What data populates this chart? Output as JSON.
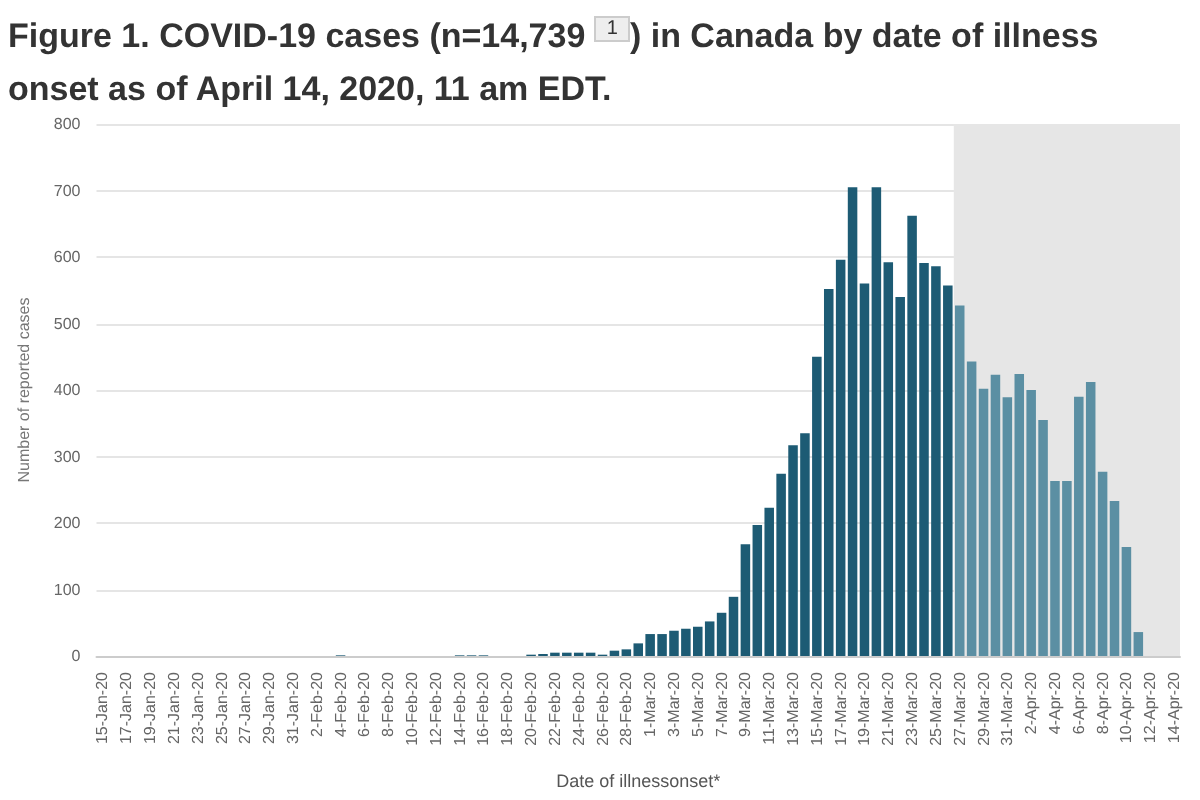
{
  "chart_data": {
    "type": "bar",
    "title": "Figure 1. COVID-19 cases (n=14,739 $^{1}$) in Canada by date of illness onset as of April 14, 2020, 11 am EDT.",
    "xlabel": "Date of illnessonset*",
    "ylabel": "Number of reported cases",
    "categories": [
      "15-Jan-20",
      null,
      "17-Jan-20",
      null,
      "19-Jan-20",
      null,
      "21-Jan-20",
      null,
      "23-Jan-20",
      null,
      "25-Jan-20",
      null,
      "27-Jan-20",
      null,
      "29-Jan-20",
      null,
      "31-Jan-20",
      null,
      "2-Feb-20",
      null,
      "4-Feb-20",
      null,
      "6-Feb-20",
      null,
      "8-Feb-20",
      null,
      "10-Feb-20",
      null,
      "12-Feb-20",
      null,
      "14-Feb-20",
      null,
      "16-Feb-20",
      null,
      "18-Feb-20",
      null,
      "20-Feb-20",
      null,
      "22-Feb-20",
      null,
      "24-Feb-20",
      null,
      "26-Feb-20",
      null,
      "28-Feb-20",
      null,
      "1-Mar-20",
      null,
      "3-Mar-20",
      null,
      "5-Mar-20",
      null,
      "7-Mar-20",
      null,
      "9-Mar-20",
      null,
      "11-Mar-20",
      null,
      "13-Mar-20",
      null,
      "15-Mar-20",
      null,
      "17-Mar-20",
      null,
      "19-Mar-20",
      null,
      "21-Mar-20",
      null,
      "23-Mar-20",
      null,
      "25-Mar-20",
      null,
      "27-Mar-20",
      null,
      "29-Mar-20",
      null,
      "31-Mar-20",
      null,
      "2-Apr-20",
      null,
      "4-Apr-20",
      null,
      "6-Apr-20",
      null,
      "8-Apr-20",
      null,
      "10-Apr-20",
      null,
      "12-Apr-20",
      null,
      "14-Apr-20"
    ],
    "values": [
      0,
      0,
      0,
      0,
      0,
      0,
      0,
      0,
      0,
      0,
      0,
      0,
      0,
      0,
      0,
      0,
      0,
      0,
      0,
      0,
      1,
      0,
      0,
      0,
      0,
      0,
      0,
      0,
      0,
      0,
      1,
      1,
      1,
      0,
      0,
      0,
      2,
      3,
      5,
      5,
      5,
      5,
      2,
      8,
      10,
      19,
      33,
      33,
      38,
      41,
      44,
      52,
      65,
      89,
      168,
      197,
      223,
      274,
      317,
      335,
      450,
      552,
      596,
      705,
      560,
      705,
      592,
      540,
      662,
      591,
      586,
      557,
      527,
      443,
      402,
      423,
      389,
      424,
      400,
      355,
      263,
      263,
      390,
      412,
      277,
      233,
      164,
      36,
      0,
      0,
      0
    ],
    "colors": [
      "#1d5b74",
      "#1d5b74",
      "#1d5b74",
      "#1d5b74",
      "#1d5b74",
      "#1d5b74",
      "#1d5b74",
      "#1d5b74",
      "#1d5b74",
      "#1d5b74",
      "#1d5b74",
      "#1d5b74",
      "#1d5b74",
      "#1d5b74",
      "#1d5b74",
      "#1d5b74",
      "#1d5b74",
      "#1d5b74",
      "#1d5b74",
      "#1d5b74",
      "#1d5b74",
      "#1d5b74",
      "#1d5b74",
      "#1d5b74",
      "#1d5b74",
      "#1d5b74",
      "#1d5b74",
      "#1d5b74",
      "#1d5b74",
      "#1d5b74",
      "#1d5b74",
      "#1d5b74",
      "#1d5b74",
      "#1d5b74",
      "#1d5b74",
      "#1d5b74",
      "#1d5b74",
      "#1d5b74",
      "#1d5b74",
      "#1d5b74",
      "#1d5b74",
      "#1d5b74",
      "#1d5b74",
      "#1d5b74",
      "#1d5b74",
      "#1d5b74",
      "#1d5b74",
      "#1d5b74",
      "#1d5b74",
      "#1d5b74",
      "#1d5b74",
      "#1d5b74",
      "#1d5b74",
      "#1d5b74",
      "#1d5b74",
      "#1d5b74",
      "#1d5b74",
      "#1d5b74",
      "#1d5b74",
      "#1d5b74",
      "#1d5b74",
      "#1d5b74",
      "#1d5b74",
      "#1d5b74",
      "#1d5b74",
      "#1d5b74",
      "#1d5b74",
      "#1d5b74",
      "#1d5b74",
      "#1d5b74",
      "#1d5b74",
      "#1d5b74",
      "#5b8fa3",
      "#5b8fa3",
      "#5b8fa3",
      "#5b8fa3",
      "#5b8fa3",
      "#5b8fa3",
      "#5b8fa3",
      "#5b8fa3",
      "#5b8fa3",
      "#5b8fa3",
      "#5b8fa3",
      "#5b8fa3",
      "#5b8fa3",
      "#5b8fa3",
      "#5b8fa3",
      "#5b8fa3",
      "#5b8fa3",
      "#5b8fa3",
      "#5b8fa3"
    ],
    "ylim": [
      0,
      800
    ],
    "yticks": [
      0,
      100,
      200,
      300,
      400,
      500,
      600,
      700,
      800
    ],
    "grid": "y",
    "bands": [
      {
        "axis": "x",
        "from": "27-Mar-20",
        "to": "14-Apr-20",
        "color": "#e6e6e6"
      }
    ]
  }
}
